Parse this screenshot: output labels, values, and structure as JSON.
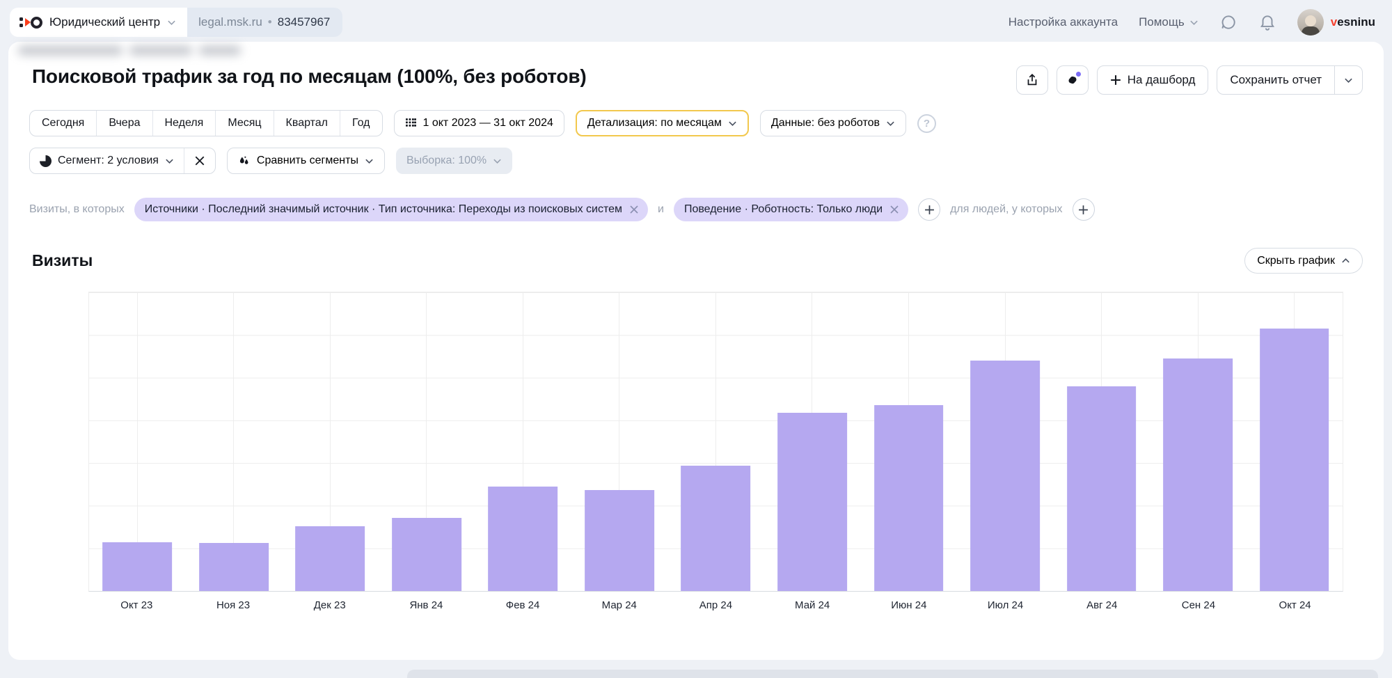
{
  "header": {
    "counter_name": "Юридический центр",
    "domain": "legal.msk.ru",
    "dot": "•",
    "counter_id": "83457967",
    "account_settings": "Настройка аккаунта",
    "help": "Помощь",
    "username_initial": "v",
    "username_rest": "esninu"
  },
  "report": {
    "title": "Поисковой трафик за год по месяцам (100%, без роботов)",
    "dashboard_label": "На дашборд",
    "save_label": "Сохранить отчет"
  },
  "period_tabs": [
    "Сегодня",
    "Вчера",
    "Неделя",
    "Месяц",
    "Квартал",
    "Год"
  ],
  "controls": {
    "date_range": "1 окт 2023 — 31 окт 2024",
    "detail": "Детализация: по месяцам",
    "data_mode": "Данные: без роботов",
    "segment": "Сегмент: 2 условия",
    "compare": "Сравнить сегменты",
    "sampling": "Выборка: 100%"
  },
  "filters": {
    "prefix": "Визиты, в которых",
    "chips": [
      "Источники · Последний значимый источник · Тип источника: Переходы из поисковых систем",
      "Поведение · Роботность: Только люди"
    ],
    "conjunction": "и",
    "suffix": "для людей, у которых"
  },
  "chart_section": {
    "metric_title": "Визиты",
    "hide_chart": "Скрыть график"
  },
  "icons": {
    "help_glyph": "?"
  },
  "colors": {
    "accent_border": "#f2c84d",
    "chip_bg": "#dcd6f9",
    "bar_color": "#b5a8f0",
    "brand_red": "#fc3f1d",
    "grid_color": "#ededed"
  },
  "chart_data": {
    "type": "bar",
    "title": "Визиты",
    "categories": [
      "Окт 23",
      "Ноя 23",
      "Дек 23",
      "Янв 24",
      "Фев 24",
      "Мар 24",
      "Апр 24",
      "Май 24",
      "Июн 24",
      "Июл 24",
      "Авг 24",
      "Сен 24",
      "Окт 24"
    ],
    "values": [
      1.15,
      1.13,
      1.52,
      1.72,
      2.45,
      2.37,
      2.94,
      4.18,
      4.35,
      5.4,
      4.8,
      5.45,
      6.15
    ],
    "xlabel": "",
    "ylabel": "",
    "ylim": [
      0,
      7
    ],
    "y_axis_labels": "none visible (values estimated in gridline units, 7 grid rows)",
    "grid": true,
    "legend": false,
    "bar_color": "#b5a8f0"
  }
}
